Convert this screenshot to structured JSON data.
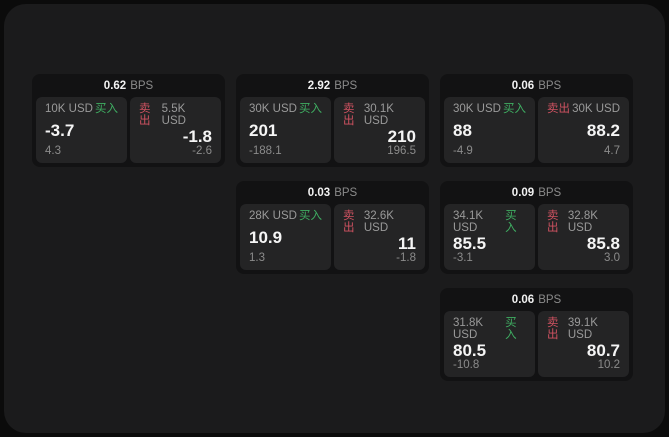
{
  "labels": {
    "bps_unit": "BPS",
    "buy": "买入",
    "sell": "卖出"
  },
  "colors": {
    "background": "#0b0b0b",
    "panel": "#1b1b1c",
    "card": "#121213",
    "pane": "#242425",
    "buy_accent": "#3fae62",
    "sell_accent": "#cf5261",
    "text_primary": "#f5f5f5",
    "text_secondary": "#8b8b8b"
  },
  "cards": [
    {
      "bps": "0.62",
      "buy": {
        "amount": "10K USD",
        "value": "-3.7",
        "sub": "4.3"
      },
      "sell": {
        "amount": "5.5K USD",
        "value": "-1.8",
        "sub": "-2.6"
      }
    },
    {
      "bps": "2.92",
      "buy": {
        "amount": "30K USD",
        "value": "201",
        "sub": "-188.1"
      },
      "sell": {
        "amount": "30.1K USD",
        "value": "210",
        "sub": "196.5"
      }
    },
    {
      "bps": "0.06",
      "buy": {
        "amount": "30K USD",
        "value": "88",
        "sub": "-4.9"
      },
      "sell": {
        "amount": "30K USD",
        "value": "88.2",
        "sub": "4.7"
      }
    },
    {
      "bps": "0.03",
      "buy": {
        "amount": "28K USD",
        "value": "10.9",
        "sub": "1.3"
      },
      "sell": {
        "amount": "32.6K USD",
        "value": "11",
        "sub": "-1.8"
      }
    },
    {
      "bps": "0.09",
      "buy": {
        "amount": "34.1K USD",
        "value": "85.5",
        "sub": "-3.1"
      },
      "sell": {
        "amount": "32.8K USD",
        "value": "85.8",
        "sub": "3.0"
      }
    },
    {
      "bps": "0.06",
      "buy": {
        "amount": "31.8K USD",
        "value": "80.5",
        "sub": "-10.8"
      },
      "sell": {
        "amount": "39.1K USD",
        "value": "80.7",
        "sub": "10.2"
      }
    }
  ]
}
